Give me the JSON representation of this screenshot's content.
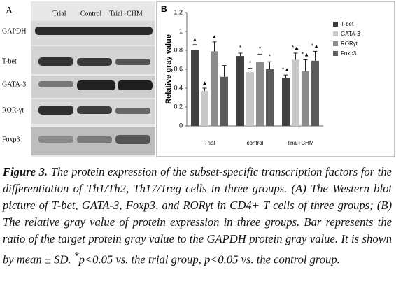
{
  "panel_a": {
    "label": "A",
    "columns": [
      "Trial",
      "Control",
      "Trial+CHM"
    ],
    "rows": [
      "GAPDH",
      "T-bet",
      "GATA-3",
      "ROR-γt",
      "Foxp3"
    ]
  },
  "chart_data": {
    "type": "bar",
    "panel_label": "B",
    "y_label": "Relative gray value",
    "categories": [
      "Trial",
      "control",
      "Trial+CHM"
    ],
    "series": [
      {
        "name": "T-bet",
        "color": "#404040",
        "values": [
          0.8,
          0.74,
          0.51
        ],
        "errors": [
          0.06,
          0.03,
          0.03
        ],
        "markers": [
          "▲",
          "*",
          "*▲"
        ]
      },
      {
        "name": "GATA-3",
        "color": "#c8c8c8",
        "values": [
          0.37,
          0.57,
          0.7
        ],
        "errors": [
          0.03,
          0.04,
          0.07
        ],
        "markers": [
          "▲",
          "*",
          "*▲"
        ]
      },
      {
        "name": "RORγt",
        "color": "#8c8c8c",
        "values": [
          0.79,
          0.68,
          0.58
        ],
        "errors": [
          0.1,
          0.08,
          0.12
        ],
        "markers": [
          "▲",
          "*",
          "*▲"
        ]
      },
      {
        "name": "Foxp3",
        "color": "#5a5a5a",
        "values": [
          0.52,
          0.6,
          0.69
        ],
        "errors": [
          0.12,
          0.08,
          0.1
        ],
        "markers": [
          null,
          "*",
          "*▲"
        ]
      }
    ],
    "ylim": [
      0,
      1.2
    ],
    "yticks": [
      0,
      0.2,
      0.4,
      0.6,
      0.8,
      1,
      1.2
    ],
    "legend": "right"
  },
  "caption": {
    "label": "Figure 3.",
    "text": " The protein expression of the subset-specific transcription factors for the differentiation of Th1/Th2, Th17/Treg cells in three groups. (A) The Western blot picture of T-bet, GATA-3, Foxp3, and RORγt in CD4+ T cells of three groups; (B) The relative gray value of protein expression in three groups. Bar represents the ratio of the target protein gray value to the GAPDH protein gray value. It is shown by mean ± SD. ",
    "sup": "*",
    "text_end": "p<0.05 vs. the trial group, p<0.05 vs. the control group."
  }
}
